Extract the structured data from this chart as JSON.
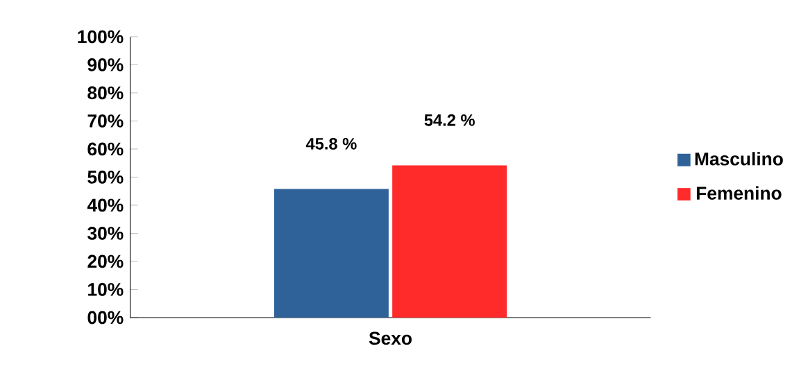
{
  "chart_data": {
    "type": "bar",
    "categories": [
      "Sexo"
    ],
    "series": [
      {
        "name": "Masculino",
        "color": "#30629a",
        "values": [
          45.8
        ],
        "value_labels": [
          "45.8 %"
        ]
      },
      {
        "name": "Femenino",
        "color": "#ff2a2a",
        "values": [
          54.2
        ],
        "value_labels": [
          "54.2 %"
        ]
      }
    ],
    "ylim": [
      0,
      100
    ],
    "yticks": [
      {
        "value": 0,
        "label": "00%"
      },
      {
        "value": 10,
        "label": "10%"
      },
      {
        "value": 20,
        "label": "20%"
      },
      {
        "value": 30,
        "label": "30%"
      },
      {
        "value": 40,
        "label": "40%"
      },
      {
        "value": 50,
        "label": "50%"
      },
      {
        "value": 60,
        "label": "60%"
      },
      {
        "value": 70,
        "label": "70%"
      },
      {
        "value": 80,
        "label": "80%"
      },
      {
        "value": 90,
        "label": "90%"
      },
      {
        "value": 100,
        "label": "100%"
      }
    ],
    "legend": "right",
    "grid": false
  }
}
